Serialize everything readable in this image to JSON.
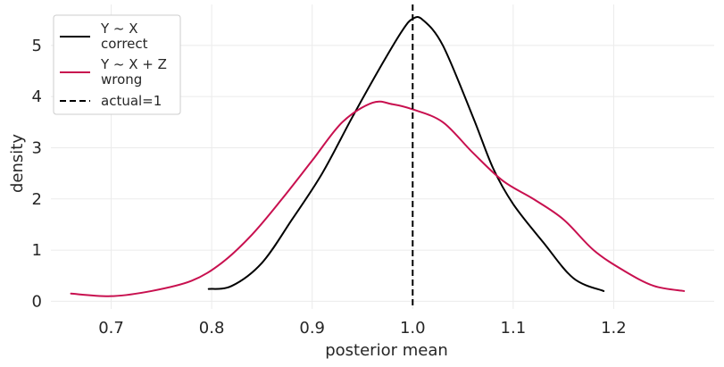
{
  "chart_data": {
    "type": "line",
    "title": "",
    "xlabel": "posterior mean",
    "ylabel": "density",
    "xlim": [
      0.64,
      1.3
    ],
    "ylim": [
      -0.15,
      5.8
    ],
    "xticks": [
      0.7,
      0.8,
      0.9,
      1.0,
      1.1,
      1.2
    ],
    "xtick_labels": [
      "0.7",
      "0.8",
      "0.9",
      "1.0",
      "1.1",
      "1.2"
    ],
    "yticks": [
      0,
      1,
      2,
      3,
      4,
      5
    ],
    "ytick_labels": [
      "0",
      "1",
      "2",
      "3",
      "4",
      "5"
    ],
    "grid": true,
    "legend_position": "top-left",
    "series": [
      {
        "name_lines": [
          "Y ~ X",
          "correct"
        ],
        "color": "#000000",
        "style": "solid",
        "x": [
          0.797,
          0.82,
          0.85,
          0.88,
          0.91,
          0.94,
          0.97,
          0.99,
          1.0,
          1.01,
          1.03,
          1.06,
          1.08,
          1.1,
          1.13,
          1.16,
          1.19
        ],
        "y": [
          0.24,
          0.3,
          0.75,
          1.6,
          2.5,
          3.6,
          4.65,
          5.3,
          5.52,
          5.5,
          5.0,
          3.6,
          2.6,
          1.9,
          1.15,
          0.45,
          0.2
        ]
      },
      {
        "name_lines": [
          "Y ~ X + Z",
          "wrong"
        ],
        "color": "#c8104f",
        "style": "solid",
        "x": [
          0.66,
          0.7,
          0.74,
          0.78,
          0.81,
          0.84,
          0.87,
          0.9,
          0.93,
          0.96,
          0.98,
          1.0,
          1.03,
          1.06,
          1.09,
          1.12,
          1.15,
          1.18,
          1.21,
          1.24,
          1.27
        ],
        "y": [
          0.15,
          0.1,
          0.2,
          0.4,
          0.75,
          1.3,
          2.0,
          2.75,
          3.5,
          3.88,
          3.85,
          3.75,
          3.5,
          2.9,
          2.35,
          2.0,
          1.6,
          1.0,
          0.6,
          0.3,
          0.2
        ]
      },
      {
        "name_lines": [
          "actual=1"
        ],
        "color": "#000000",
        "style": "dashed",
        "vline_x": 1.0
      }
    ]
  }
}
